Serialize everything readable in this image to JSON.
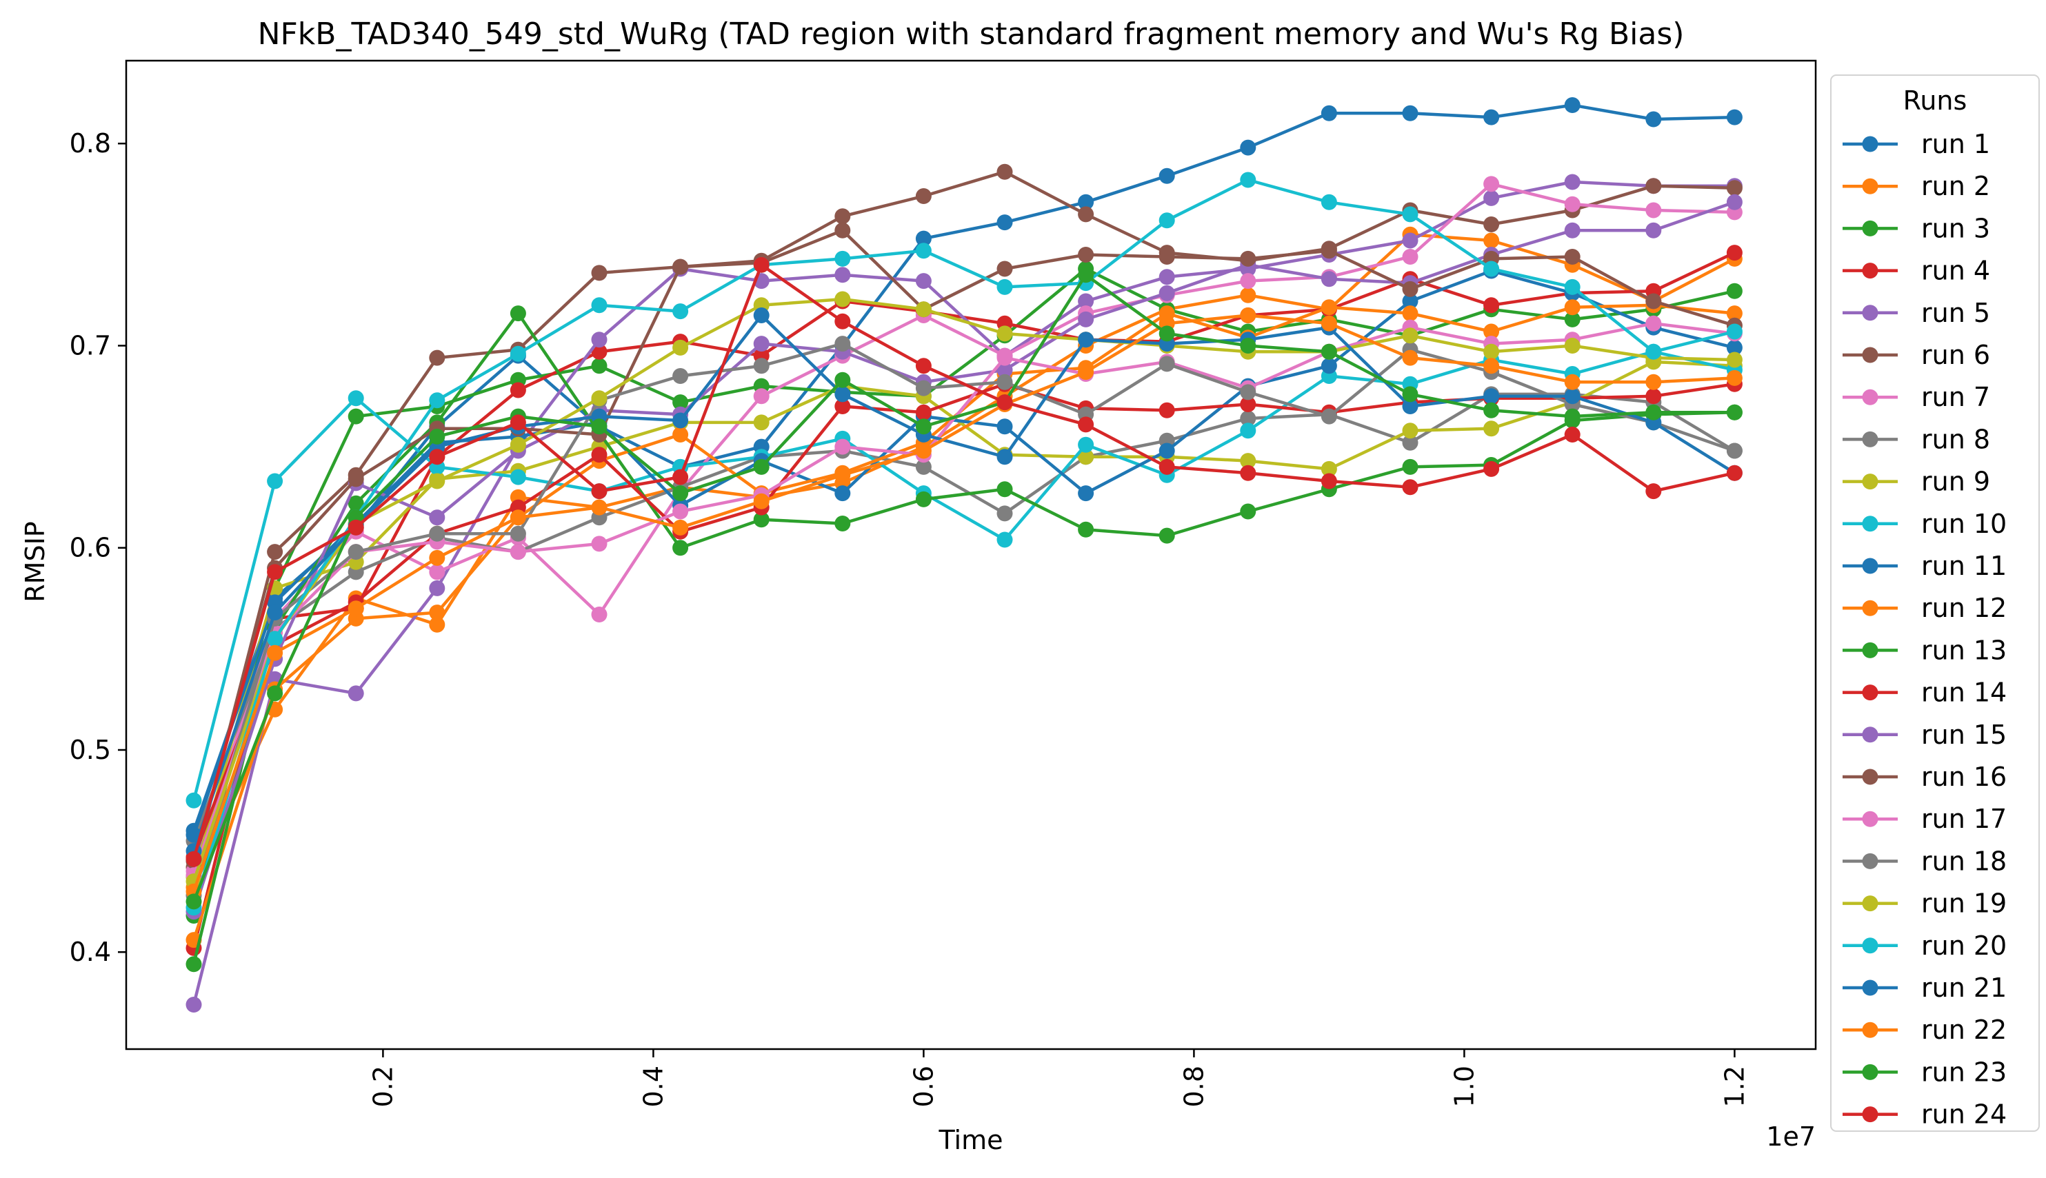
{
  "chart_data": {
    "type": "line",
    "title": "NFkB_TAD340_549_std_WuRg (TAD region with standard fragment memory and Wu's Rg Bias)",
    "xlabel": "Time",
    "ylabel": "RMSIP",
    "x_offset_label": "1e7",
    "xlim": [
      100000.0,
      12600000.0
    ],
    "ylim": [
      0.352,
      0.841
    ],
    "xticks": [
      2000000,
      4000000,
      6000000,
      8000000,
      10000000,
      12000000
    ],
    "xtick_labels": [
      "0.2",
      "0.4",
      "0.6",
      "0.8",
      "1.0",
      "1.2"
    ],
    "yticks": [
      0.4,
      0.5,
      0.6,
      0.7,
      0.8
    ],
    "ytick_labels": [
      "0.4",
      "0.5",
      "0.6",
      "0.7",
      "0.8"
    ],
    "grid": false,
    "legend": {
      "title": "Runs",
      "placement": "outside-right"
    },
    "x": [
      600000,
      1200000,
      1800000,
      2400000,
      3000000,
      3600000,
      4200000,
      4800000,
      5400000,
      6000000,
      6600000,
      7200000,
      7800000,
      8400000,
      9000000,
      9600000,
      10200000,
      10800000,
      11400000,
      12000000
    ],
    "series": [
      {
        "name": "run 1",
        "color": "#1f77b4",
        "values": [
          0.46,
          0.575,
          0.61,
          0.66,
          0.695,
          0.66,
          0.64,
          0.65,
          0.7,
          0.753,
          0.761,
          0.771,
          0.784,
          0.798,
          0.815,
          0.815,
          0.813,
          0.819,
          0.812,
          0.813
        ]
      },
      {
        "name": "run 2",
        "color": "#ff7f0e",
        "values": [
          0.432,
          0.52,
          0.575,
          0.562,
          0.625,
          0.62,
          0.63,
          0.625,
          0.632,
          0.65,
          0.675,
          0.7,
          0.718,
          0.725,
          0.718,
          0.755,
          0.752,
          0.74,
          0.722,
          0.743
        ]
      },
      {
        "name": "run 3",
        "color": "#2ca02c",
        "values": [
          0.418,
          0.58,
          0.665,
          0.67,
          0.683,
          0.69,
          0.672,
          0.68,
          0.677,
          0.675,
          0.705,
          0.738,
          0.718,
          0.707,
          0.713,
          0.705,
          0.718,
          0.713,
          0.718,
          0.727
        ]
      },
      {
        "name": "run 4",
        "color": "#d62728",
        "values": [
          0.402,
          0.565,
          0.57,
          0.645,
          0.678,
          0.697,
          0.702,
          0.695,
          0.722,
          0.717,
          0.711,
          0.703,
          0.702,
          0.715,
          0.718,
          0.733,
          0.72,
          0.726,
          0.727,
          0.746
        ]
      },
      {
        "name": "run 5",
        "color": "#9467bd",
        "values": [
          0.374,
          0.535,
          0.528,
          0.58,
          0.65,
          0.703,
          0.738,
          0.732,
          0.735,
          0.732,
          0.695,
          0.722,
          0.734,
          0.738,
          0.745,
          0.752,
          0.773,
          0.781,
          0.779,
          0.779
        ]
      },
      {
        "name": "run 6",
        "color": "#8c564b",
        "values": [
          0.442,
          0.598,
          0.636,
          0.694,
          0.698,
          0.736,
          0.739,
          0.742,
          0.764,
          0.774,
          0.786,
          0.765,
          0.746,
          0.742,
          0.748,
          0.767,
          0.76,
          0.767,
          0.779,
          0.778
        ]
      },
      {
        "name": "run 7",
        "color": "#e377c2",
        "values": [
          0.44,
          0.565,
          0.608,
          0.588,
          0.605,
          0.567,
          0.628,
          0.675,
          0.695,
          0.715,
          0.695,
          0.716,
          0.725,
          0.732,
          0.734,
          0.744,
          0.78,
          0.77,
          0.767,
          0.766
        ]
      },
      {
        "name": "run 8",
        "color": "#7f7f7f",
        "values": [
          0.455,
          0.56,
          0.588,
          0.605,
          0.598,
          0.615,
          0.63,
          0.645,
          0.648,
          0.64,
          0.617,
          0.645,
          0.653,
          0.664,
          0.666,
          0.652,
          0.676,
          0.676,
          0.672,
          0.648
        ]
      },
      {
        "name": "run 9",
        "color": "#bcbd22",
        "values": [
          0.437,
          0.58,
          0.593,
          0.634,
          0.638,
          0.65,
          0.662,
          0.662,
          0.68,
          0.675,
          0.646,
          0.645,
          0.645,
          0.643,
          0.639,
          0.658,
          0.659,
          0.672,
          0.692,
          0.69
        ]
      },
      {
        "name": "run 10",
        "color": "#17becf",
        "values": [
          0.475,
          0.633,
          0.674,
          0.64,
          0.635,
          0.628,
          0.64,
          0.645,
          0.654,
          0.627,
          0.604,
          0.651,
          0.636,
          0.658,
          0.685,
          0.681,
          0.693,
          0.686,
          0.697,
          0.688
        ]
      },
      {
        "name": "run 11",
        "color": "#1f77b4",
        "values": [
          0.458,
          0.573,
          0.612,
          0.652,
          0.655,
          0.662,
          0.621,
          0.643,
          0.627,
          0.665,
          0.66,
          0.627,
          0.648,
          0.68,
          0.69,
          0.722,
          0.737,
          0.726,
          0.709,
          0.699
        ]
      },
      {
        "name": "run 12",
        "color": "#ff7f0e",
        "values": [
          0.406,
          0.53,
          0.565,
          0.568,
          0.615,
          0.643,
          0.656,
          0.627,
          0.637,
          0.652,
          0.686,
          0.689,
          0.716,
          0.704,
          0.719,
          0.716,
          0.707,
          0.719,
          0.72,
          0.716
        ]
      },
      {
        "name": "run 13",
        "color": "#2ca02c",
        "values": [
          0.394,
          0.56,
          0.622,
          0.662,
          0.716,
          0.657,
          0.6,
          0.614,
          0.612,
          0.624,
          0.629,
          0.609,
          0.606,
          0.618,
          0.629,
          0.64,
          0.641,
          0.663,
          0.666,
          0.667
        ]
      },
      {
        "name": "run 14",
        "color": "#d62728",
        "values": [
          0.447,
          0.552,
          0.573,
          0.607,
          0.62,
          0.646,
          0.608,
          0.62,
          0.67,
          0.667,
          0.681,
          0.669,
          0.668,
          0.671,
          0.667,
          0.672,
          0.674,
          0.674,
          0.675,
          0.681
        ]
      },
      {
        "name": "run 15",
        "color": "#9467bd",
        "values": [
          0.42,
          0.545,
          0.632,
          0.615,
          0.648,
          0.668,
          0.666,
          0.701,
          0.697,
          0.682,
          0.688,
          0.713,
          0.726,
          0.74,
          0.733,
          0.731,
          0.745,
          0.757,
          0.757,
          0.771
        ]
      },
      {
        "name": "run 16",
        "color": "#8c564b",
        "values": [
          0.445,
          0.59,
          0.634,
          0.659,
          0.659,
          0.656,
          0.739,
          0.741,
          0.757,
          0.718,
          0.738,
          0.745,
          0.744,
          0.743,
          0.747,
          0.728,
          0.743,
          0.744,
          0.722,
          0.71
        ]
      },
      {
        "name": "run 17",
        "color": "#e377c2",
        "values": [
          0.438,
          0.558,
          0.598,
          0.603,
          0.598,
          0.602,
          0.618,
          0.626,
          0.65,
          0.646,
          0.694,
          0.686,
          0.692,
          0.679,
          0.697,
          0.709,
          0.701,
          0.703,
          0.711,
          0.706
        ]
      },
      {
        "name": "run 18",
        "color": "#7f7f7f",
        "values": [
          0.428,
          0.565,
          0.598,
          0.607,
          0.607,
          0.673,
          0.685,
          0.69,
          0.701,
          0.679,
          0.682,
          0.666,
          0.691,
          0.677,
          0.665,
          0.698,
          0.687,
          0.671,
          0.662,
          0.648
        ]
      },
      {
        "name": "run 19",
        "color": "#bcbd22",
        "values": [
          0.435,
          0.555,
          0.612,
          0.633,
          0.651,
          0.674,
          0.699,
          0.72,
          0.723,
          0.718,
          0.706,
          0.703,
          0.7,
          0.697,
          0.697,
          0.705,
          0.697,
          0.7,
          0.694,
          0.693
        ]
      },
      {
        "name": "run 20",
        "color": "#17becf",
        "values": [
          0.422,
          0.555,
          0.615,
          0.673,
          0.696,
          0.72,
          0.717,
          0.74,
          0.743,
          0.747,
          0.729,
          0.731,
          0.762,
          0.782,
          0.771,
          0.765,
          0.738,
          0.729,
          0.697,
          0.707
        ]
      },
      {
        "name": "run 21",
        "color": "#1f77b4",
        "values": [
          0.45,
          0.568,
          0.611,
          0.65,
          0.66,
          0.665,
          0.663,
          0.715,
          0.676,
          0.656,
          0.645,
          0.703,
          0.701,
          0.703,
          0.709,
          0.67,
          0.675,
          0.675,
          0.662,
          0.637
        ]
      },
      {
        "name": "run 22",
        "color": "#ff7f0e",
        "values": [
          0.43,
          0.548,
          0.57,
          0.595,
          0.615,
          0.62,
          0.61,
          0.623,
          0.636,
          0.648,
          0.671,
          0.687,
          0.711,
          0.715,
          0.711,
          0.694,
          0.69,
          0.682,
          0.682,
          0.684
        ]
      },
      {
        "name": "run 23",
        "color": "#2ca02c",
        "values": [
          0.425,
          0.528,
          0.615,
          0.655,
          0.665,
          0.66,
          0.627,
          0.64,
          0.683,
          0.66,
          0.672,
          0.735,
          0.706,
          0.7,
          0.697,
          0.676,
          0.668,
          0.665,
          0.667,
          0.667
        ]
      },
      {
        "name": "run 24",
        "color": "#d62728",
        "values": [
          0.446,
          0.588,
          0.61,
          0.645,
          0.662,
          0.628,
          0.635,
          0.74,
          0.712,
          0.69,
          0.672,
          0.661,
          0.64,
          0.637,
          0.633,
          0.63,
          0.639,
          0.656,
          0.628,
          0.637
        ]
      }
    ]
  }
}
